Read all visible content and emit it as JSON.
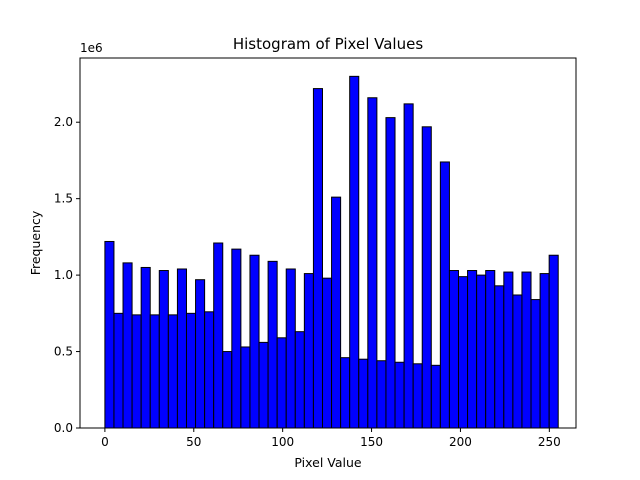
{
  "chart_data": {
    "type": "bar",
    "title": "Histogram of Pixel Values",
    "xlabel": "Pixel Value",
    "ylabel": "Frequency",
    "y_offset_label": "1e6",
    "xlim": [
      -14,
      265
    ],
    "ylim": [
      0,
      2.42
    ],
    "x_ticks": [
      0,
      50,
      100,
      150,
      200,
      250
    ],
    "y_ticks": [
      0.0,
      0.5,
      1.0,
      1.5,
      2.0
    ],
    "y_tick_labels": [
      "0.0",
      "0.5",
      "1.0",
      "1.5",
      "2.0"
    ],
    "bin_start": 0,
    "bin_width": 5.1,
    "bar_color": "#0000ff",
    "edge_color": "#000000",
    "grid": false,
    "legend": "none",
    "y_units": "millions",
    "values": [
      1.22,
      0.75,
      1.08,
      0.74,
      1.05,
      0.74,
      1.03,
      0.74,
      1.04,
      0.75,
      0.97,
      0.76,
      1.21,
      0.5,
      1.17,
      0.53,
      1.13,
      0.56,
      1.09,
      0.59,
      1.04,
      0.63,
      1.01,
      2.22,
      0.98,
      1.51,
      0.46,
      2.3,
      0.45,
      2.16,
      0.44,
      2.03,
      0.43,
      2.12,
      0.42,
      1.97,
      0.41,
      1.74,
      1.03,
      0.99,
      1.03,
      1.0,
      1.03,
      0.93,
      1.02,
      0.87,
      1.02,
      0.84,
      1.01,
      1.13
    ]
  }
}
